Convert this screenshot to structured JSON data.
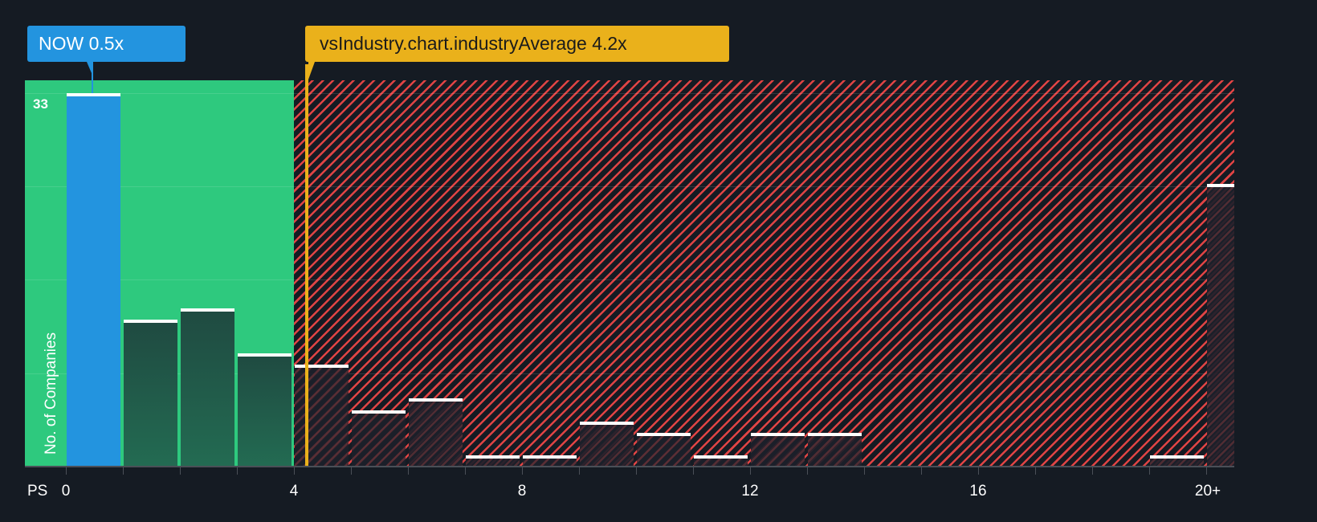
{
  "chart_data": {
    "type": "bar",
    "title": "",
    "xlabel": "PS",
    "ylabel": "No. of Companies",
    "x_tick_labels": [
      "0",
      "4",
      "8",
      "12",
      "16",
      "20+"
    ],
    "x_ticks": [
      0,
      4,
      8,
      12,
      16,
      20
    ],
    "ylim": [
      0,
      33
    ],
    "y_max_label": "33",
    "grid": true,
    "bin_width": 1,
    "categories": [
      "0-1",
      "1-2",
      "2-3",
      "3-4",
      "4-5",
      "5-6",
      "6-7",
      "7-8",
      "8-9",
      "9-10",
      "10-11",
      "11-12",
      "12-13",
      "13-14",
      "14-15",
      "15-16",
      "16-17",
      "17-18",
      "18-19",
      "19-20",
      "20+"
    ],
    "values": [
      33,
      13,
      14,
      10,
      9,
      5,
      6,
      1,
      1,
      4,
      3,
      1,
      3,
      3,
      0,
      0,
      0,
      0,
      0,
      1,
      25
    ],
    "highlight": {
      "label": "NOW",
      "value": 0.5,
      "display": "NOW 0.5x",
      "bin_index": 0
    },
    "industry_average": {
      "label": "vsIndustry.chart.industryAverage",
      "value": 4.2,
      "display": "vsIndustry.chart.industryAverage 4.2x"
    },
    "zones": [
      {
        "name": "below-average",
        "from": -0.7,
        "to": 4.0,
        "color": "#2ec97e"
      },
      {
        "name": "above-average",
        "from": 4.0,
        "to": 21.2,
        "color": "#e04444",
        "pattern": "diagonal-hatch"
      }
    ]
  },
  "colors": {
    "background": "#151b23",
    "green_zone": "#2ec97e",
    "red_hatch": "#e04444",
    "highlight_bar": "#2394df",
    "industry_avg": "#eab11b"
  },
  "labels": {
    "now_callout": "NOW 0.5x",
    "avg_callout": "vsIndustry.chart.industryAverage 4.2x",
    "y_max": "33",
    "y_axis": "No. of Companies",
    "x_axis_prefix": "PS",
    "x_ticks": [
      "0",
      "4",
      "8",
      "12",
      "16",
      "20+"
    ]
  }
}
